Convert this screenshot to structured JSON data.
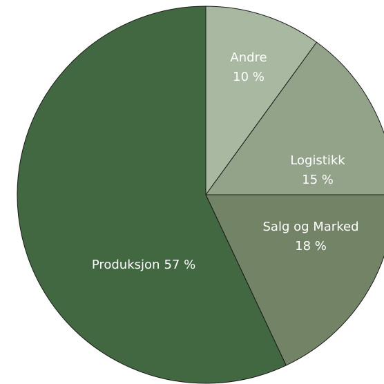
{
  "chart_data": {
    "type": "pie",
    "categories": [
      "Andre",
      "Logistikk",
      "Salg og Marked",
      "Produksjon"
    ],
    "values": [
      10,
      15,
      18,
      57
    ],
    "value_labels": [
      "10 %",
      "15 %",
      "18 %",
      "57 %"
    ],
    "colors": [
      "#a9b8a0",
      "#93a389",
      "#738466",
      "#426841"
    ],
    "start_angle": 90,
    "direction": "clockwise"
  }
}
